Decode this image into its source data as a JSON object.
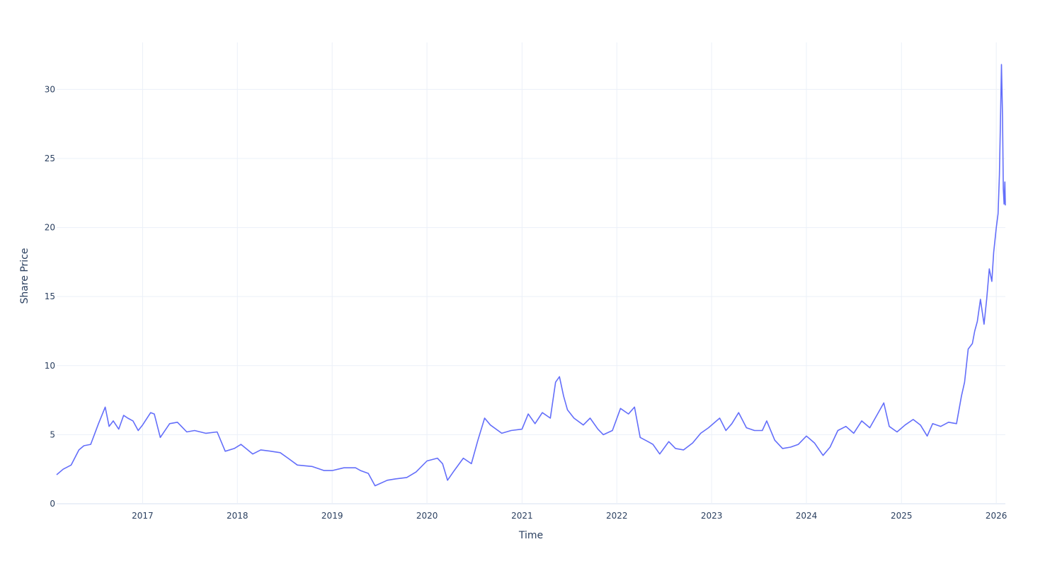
{
  "chart_data": {
    "type": "line",
    "title": "",
    "xlabel": "Time",
    "ylabel": "Share Price",
    "x_range": [
      "2016-02-05",
      "2026-02-05"
    ],
    "ylim": [
      0,
      33.4
    ],
    "x_ticks": [
      {
        "date": "2017-01-01",
        "label": "2017"
      },
      {
        "date": "2018-01-01",
        "label": "2018"
      },
      {
        "date": "2019-01-01",
        "label": "2019"
      },
      {
        "date": "2020-01-01",
        "label": "2020"
      },
      {
        "date": "2021-01-01",
        "label": "2021"
      },
      {
        "date": "2022-01-01",
        "label": "2022"
      },
      {
        "date": "2023-01-01",
        "label": "2023"
      },
      {
        "date": "2024-01-01",
        "label": "2024"
      },
      {
        "date": "2025-01-01",
        "label": "2025"
      },
      {
        "date": "2026-01-01",
        "label": "2026"
      }
    ],
    "y_ticks": [
      {
        "value": 0,
        "label": "0"
      },
      {
        "value": 5,
        "label": "5"
      },
      {
        "value": 10,
        "label": "10"
      },
      {
        "value": 15,
        "label": "15"
      },
      {
        "value": 20,
        "label": "20"
      },
      {
        "value": 25,
        "label": "25"
      },
      {
        "value": 30,
        "label": "30"
      }
    ],
    "grid": true,
    "series": [
      {
        "color": "#636efa",
        "x": [
          "2016-02-05",
          "2016-03-01",
          "2016-04-01",
          "2016-05-01",
          "2016-05-20",
          "2016-06-15",
          "2016-07-15",
          "2016-08-10",
          "2016-08-25",
          "2016-09-10",
          "2016-10-01",
          "2016-10-20",
          "2016-11-05",
          "2016-11-25",
          "2016-12-15",
          "2017-01-01",
          "2017-02-01",
          "2017-02-15",
          "2017-03-10",
          "2017-04-15",
          "2017-05-15",
          "2017-06-20",
          "2017-07-20",
          "2017-09-01",
          "2017-10-15",
          "2017-11-15",
          "2017-12-20",
          "2018-01-15",
          "2018-03-01",
          "2018-04-01",
          "2018-05-10",
          "2018-06-15",
          "2018-07-15",
          "2018-08-20",
          "2018-10-15",
          "2018-12-01",
          "2019-01-01",
          "2019-02-15",
          "2019-04-01",
          "2019-04-20",
          "2019-05-20",
          "2019-06-15",
          "2019-08-01",
          "2019-09-01",
          "2019-10-15",
          "2019-11-20",
          "2020-01-01",
          "2020-02-10",
          "2020-03-01",
          "2020-03-20",
          "2020-04-15",
          "2020-05-20",
          "2020-06-20",
          "2020-07-15",
          "2020-08-10",
          "2020-09-01",
          "2020-10-15",
          "2020-11-20",
          "2021-01-01",
          "2021-01-25",
          "2021-02-20",
          "2021-03-20",
          "2021-04-20",
          "2021-05-10",
          "2021-05-25",
          "2021-06-10",
          "2021-06-25",
          "2021-07-20",
          "2021-08-25",
          "2021-09-20",
          "2021-10-20",
          "2021-11-10",
          "2021-12-15",
          "2022-01-15",
          "2022-02-15",
          "2022-03-10",
          "2022-04-01",
          "2022-05-01",
          "2022-05-20",
          "2022-06-15",
          "2022-07-20",
          "2022-08-15",
          "2022-09-15",
          "2022-10-20",
          "2022-11-20",
          "2022-12-20",
          "2023-02-01",
          "2023-02-25",
          "2023-03-20",
          "2023-04-15",
          "2023-05-15",
          "2023-06-15",
          "2023-07-15",
          "2023-08-01",
          "2023-09-01",
          "2023-10-01",
          "2023-11-01",
          "2023-12-01",
          "2024-01-01",
          "2024-02-01",
          "2024-03-05",
          "2024-04-01",
          "2024-05-01",
          "2024-06-01",
          "2024-07-01",
          "2024-08-01",
          "2024-09-01",
          "2024-10-01",
          "2024-10-25",
          "2024-11-15",
          "2024-12-15",
          "2025-01-15",
          "2025-02-15",
          "2025-03-15",
          "2025-04-10",
          "2025-05-01",
          "2025-06-01",
          "2025-07-01",
          "2025-08-01",
          "2025-08-20",
          "2025-09-01",
          "2025-09-15",
          "2025-10-01",
          "2025-10-10",
          "2025-10-20",
          "2025-11-01",
          "2025-11-15",
          "2025-11-25",
          "2025-12-05",
          "2025-12-15",
          "2025-12-22",
          "2026-01-01",
          "2026-01-08",
          "2026-01-13",
          "2026-01-17",
          "2026-01-21",
          "2026-01-25",
          "2026-01-28",
          "2026-01-31",
          "2026-02-03",
          "2026-02-05"
        ],
        "y": [
          2.1,
          2.5,
          2.8,
          3.9,
          4.2,
          4.3,
          5.8,
          7.0,
          5.6,
          6.0,
          5.4,
          6.4,
          6.2,
          6.0,
          5.3,
          5.7,
          6.6,
          6.5,
          4.8,
          5.8,
          5.9,
          5.2,
          5.3,
          5.1,
          5.2,
          3.8,
          4.0,
          4.3,
          3.6,
          3.9,
          3.8,
          3.7,
          3.3,
          2.8,
          2.7,
          2.4,
          2.4,
          2.6,
          2.6,
          2.4,
          2.2,
          1.3,
          1.7,
          1.8,
          1.9,
          2.3,
          3.1,
          3.3,
          2.9,
          1.7,
          2.4,
          3.3,
          2.9,
          4.6,
          6.2,
          5.7,
          5.1,
          5.3,
          5.4,
          6.5,
          5.8,
          6.6,
          6.2,
          8.8,
          9.2,
          7.8,
          6.8,
          6.2,
          5.7,
          6.2,
          5.4,
          5.0,
          5.3,
          6.9,
          6.5,
          7.0,
          4.8,
          4.5,
          4.3,
          3.6,
          4.5,
          4.0,
          3.9,
          4.4,
          5.1,
          5.5,
          6.2,
          5.3,
          5.8,
          6.6,
          5.5,
          5.3,
          5.3,
          6.0,
          4.6,
          4.0,
          4.1,
          4.3,
          4.9,
          4.4,
          3.5,
          4.1,
          5.3,
          5.6,
          5.1,
          6.0,
          5.5,
          6.5,
          7.3,
          5.6,
          5.2,
          5.7,
          6.1,
          5.7,
          4.9,
          5.8,
          5.6,
          5.9,
          5.8,
          7.8,
          8.8,
          11.2,
          11.6,
          12.5,
          13.2,
          14.8,
          13.0,
          14.8,
          17.0,
          16.1,
          18.2,
          20.0,
          21.0,
          23.8,
          27.5,
          31.8,
          28.0,
          22.8,
          21.7,
          23.3,
          21.6
        ]
      }
    ]
  }
}
